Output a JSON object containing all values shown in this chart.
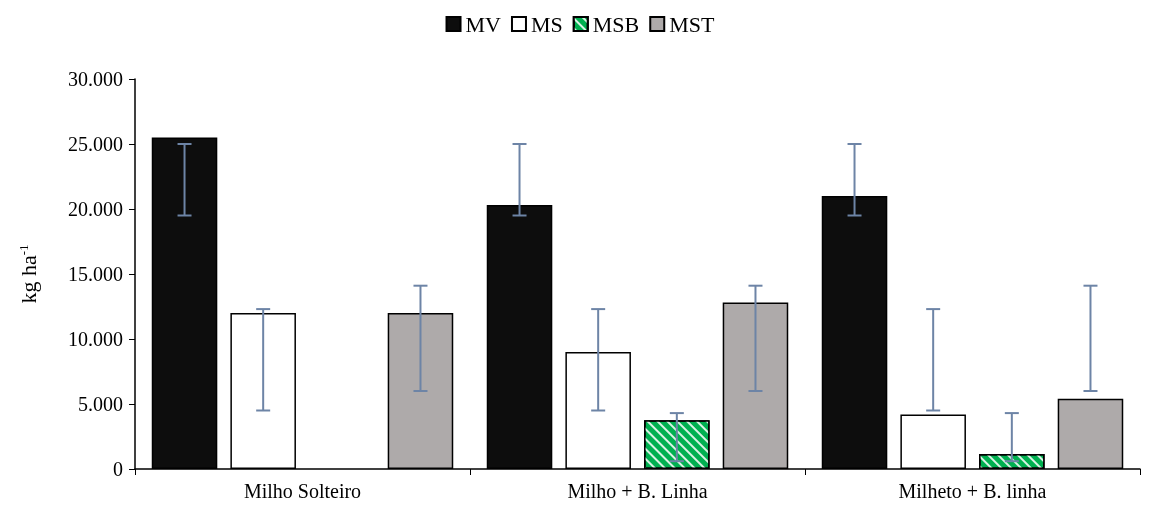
{
  "chart_data": {
    "type": "bar",
    "ylabel": "kg ha$^{-1}$",
    "categories": [
      "Milho Solteiro",
      "Milho + B. Linha",
      "Milheto + B. linha"
    ],
    "series": [
      {
        "name": "MV",
        "color": "#0d0d0d",
        "values": [
          25500,
          20300,
          21000
        ],
        "errors": [
          [
            19500,
            25000
          ],
          [
            19500,
            25000
          ],
          [
            19500,
            25000
          ]
        ]
      },
      {
        "name": "MS",
        "color": "#ffffff",
        "values": [
          12000,
          9000,
          4200
        ],
        "errors": [
          [
            4500,
            12300
          ],
          [
            4500,
            12300
          ],
          [
            4500,
            12300
          ]
        ]
      },
      {
        "name": "MSB",
        "color": "#00b050",
        "values": [
          null,
          3750,
          1150
        ],
        "errors": [
          null,
          [
            600,
            4300
          ],
          [
            600,
            4300
          ]
        ]
      },
      {
        "name": "MST",
        "color": "#aeaaaa",
        "values": [
          12000,
          12800,
          5400
        ],
        "errors": [
          [
            6000,
            14100
          ],
          [
            6000,
            14100
          ],
          [
            6000,
            14100
          ]
        ]
      }
    ],
    "ylim": [
      0,
      30000
    ],
    "yticks": [
      {
        "value": 0,
        "label": "0"
      },
      {
        "value": 5000,
        "label": "5.000"
      },
      {
        "value": 10000,
        "label": "10.000"
      },
      {
        "value": 15000,
        "label": "15.000"
      },
      {
        "value": 20000,
        "label": "20.000"
      },
      {
        "value": 25000,
        "label": "25.000"
      },
      {
        "value": 30000,
        "label": "30.000"
      }
    ],
    "grid": false,
    "legend": "top"
  }
}
